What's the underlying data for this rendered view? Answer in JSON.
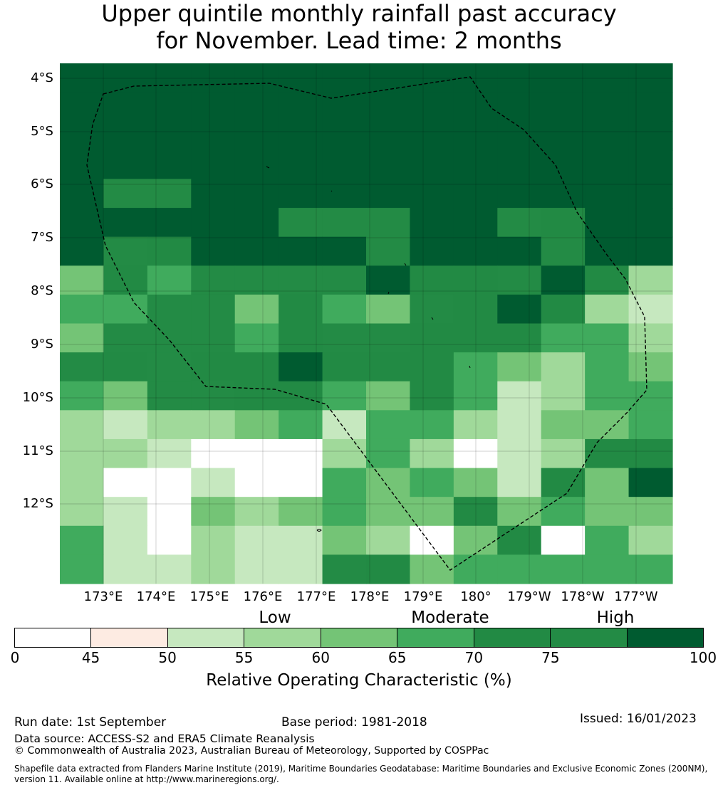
{
  "title": {
    "line1": "Upper quintile monthly rainfall past accuracy",
    "line2": "for November. Lead time: 2 months"
  },
  "map": {
    "lat_labels": [
      "4°S",
      "5°S",
      "6°S",
      "7°S",
      "8°S",
      "9°S",
      "10°S",
      "11°S",
      "12°S"
    ],
    "lon_labels": [
      "173°E",
      "174°E",
      "175°E",
      "176°E",
      "177°E",
      "178°E",
      "179°E",
      "180°",
      "179°W",
      "178°W",
      "177°W"
    ],
    "grid_rows": [
      [
        9,
        9,
        9,
        9,
        9,
        9,
        9,
        9,
        9,
        9,
        9,
        9,
        9,
        9
      ],
      [
        9,
        9,
        9,
        9,
        9,
        9,
        9,
        9,
        9,
        9,
        9,
        9,
        9,
        9
      ],
      [
        9,
        9,
        9,
        9,
        9,
        9,
        9,
        9,
        9,
        9,
        9,
        9,
        9,
        9
      ],
      [
        9,
        9,
        9,
        9,
        9,
        9,
        9,
        9,
        9,
        9,
        9,
        9,
        9,
        9
      ],
      [
        9,
        8,
        8,
        9,
        9,
        9,
        9,
        9,
        9,
        9,
        9,
        9,
        9,
        9
      ],
      [
        9,
        9,
        9,
        9,
        9,
        8,
        8,
        8,
        9,
        9,
        8,
        7,
        9,
        9
      ],
      [
        9,
        8,
        7,
        9,
        9,
        9,
        9,
        8,
        9,
        9,
        9,
        8,
        9,
        9
      ],
      [
        5,
        7,
        6,
        8,
        8,
        8,
        8,
        9,
        7,
        7,
        8,
        9,
        7,
        4
      ],
      [
        6,
        6,
        8,
        8,
        5,
        7,
        6,
        5,
        8,
        7,
        9,
        7,
        4,
        3
      ],
      [
        5,
        8,
        8,
        8,
        6,
        7,
        8,
        8,
        7,
        7,
        7,
        6,
        6,
        4
      ],
      [
        8,
        7,
        8,
        7,
        7,
        9,
        7,
        7,
        7,
        6,
        5,
        4,
        6,
        5
      ],
      [
        6,
        5,
        8,
        8,
        7,
        7,
        6,
        5,
        7,
        6,
        3,
        4,
        6,
        6
      ],
      [
        4,
        3,
        4,
        4,
        5,
        6,
        3,
        6,
        6,
        4,
        3,
        5,
        5,
        6
      ],
      [
        4,
        4,
        3,
        1,
        1,
        1,
        4,
        6,
        4,
        1,
        3,
        4,
        7,
        7
      ],
      [
        4,
        1,
        1,
        3,
        1,
        1,
        6,
        5,
        6,
        5,
        3,
        7,
        5,
        9
      ],
      [
        4,
        3,
        1,
        5,
        4,
        5,
        6,
        5,
        5,
        7,
        5,
        6,
        5,
        5
      ],
      [
        6,
        3,
        1,
        4,
        3,
        3,
        5,
        4,
        1,
        5,
        7,
        1,
        6,
        4
      ],
      [
        6,
        3,
        3,
        4,
        3,
        3,
        8,
        7,
        5,
        6,
        6,
        6,
        6,
        6
      ]
    ],
    "grid_note": "values are colorbar class indices 1-9 (0-45,45-50,...,75-100 %)"
  },
  "categories": {
    "low": "Low",
    "moderate": "Moderate",
    "high": "High"
  },
  "colorbar": {
    "ticks": [
      "0",
      "45",
      "50",
      "55",
      "60",
      "65",
      "70",
      "75",
      "100"
    ],
    "colors": [
      "#ffffff",
      "#fdebe2",
      "#c6e8bf",
      "#a0d99a",
      "#74c476",
      "#40ab5d",
      "#228a44",
      "#238b45",
      "#005b30"
    ],
    "label": "Relative Operating Characteristic (%)"
  },
  "footer": {
    "run_date": "Run date: 1st September",
    "base_period": "Base period: 1981-2018",
    "issued": "Issued: 16/01/2023",
    "data_source": "Data source: ACCESS-S2 and ERA5 Climate Reanalysis",
    "copyright": "© Commonwealth of Australia 2023, Australian Bureau of Meteorology, Supported by COSPPac",
    "shapefile": "Shapefile data extracted from Flanders Marine Institute (2019), Maritime Boundaries Geodatabase: Maritime Boundaries and Exclusive Economic Zones (200NM), version 11. Available online at http://www.marineregions.org/."
  }
}
